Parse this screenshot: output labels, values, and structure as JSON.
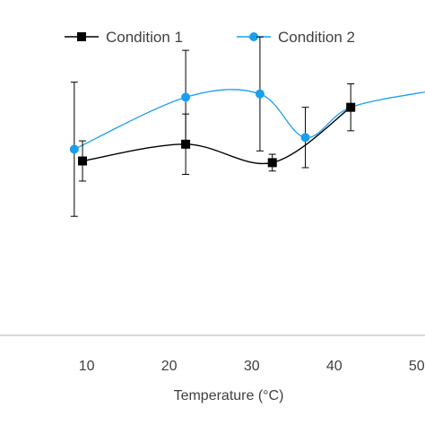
{
  "chart_data": {
    "type": "line",
    "xlabel": "Temperature (°C)",
    "ylabel": "",
    "xlim": [
      -0.5,
      51
    ],
    "ylim": [
      0,
      100
    ],
    "x_ticks": [
      10,
      20,
      30,
      40,
      50
    ],
    "x_tick_labels": [
      "10",
      "20",
      "30",
      "40",
      "50"
    ],
    "grid": false,
    "legend_position": "top",
    "smooth": true,
    "series": [
      {
        "name": "Condition 1",
        "color": "#000000",
        "marker": "square",
        "x": [
          9.5,
          22,
          32.5,
          42
        ],
        "y": [
          52,
          57,
          51.5,
          68
        ],
        "error": [
          6,
          9,
          2.5,
          7
        ]
      },
      {
        "name": "Condition 2",
        "color": "#1a9ff0",
        "marker": "circle",
        "x": [
          8.5,
          22,
          31,
          36.5,
          42,
          52
        ],
        "y": [
          55.5,
          71,
          72,
          59,
          68,
          73
        ],
        "error": [
          20,
          14,
          17,
          9,
          null,
          null
        ]
      }
    ]
  }
}
